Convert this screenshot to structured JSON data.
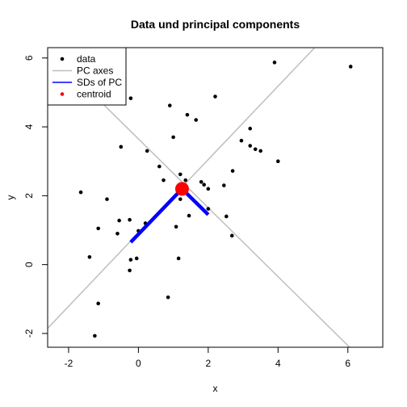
{
  "chart_data": {
    "type": "scatter",
    "title": "Data und principal components",
    "xlabel": "x",
    "ylabel": "y",
    "xlim": [
      -2.6,
      7.0
    ],
    "ylim": [
      -2.4,
      6.3
    ],
    "x_ticks": [
      -2,
      0,
      2,
      4,
      6
    ],
    "y_ticks": [
      -2,
      0,
      2,
      4,
      6
    ],
    "grid": false,
    "legend_position": "top-left",
    "legend": [
      {
        "label": "data",
        "kind": "point",
        "color": "#000000"
      },
      {
        "label": "PC axes",
        "kind": "line",
        "color": "#bebebe"
      },
      {
        "label": "SDs of PC",
        "kind": "line",
        "color": "#0000ff"
      },
      {
        "label": "centroid",
        "kind": "point",
        "color": "#ff0000"
      }
    ],
    "points": [
      {
        "x": 3.9,
        "y": 5.87
      },
      {
        "x": 6.08,
        "y": 5.75
      },
      {
        "x": -0.22,
        "y": 4.83
      },
      {
        "x": 2.2,
        "y": 4.88
      },
      {
        "x": 0.9,
        "y": 4.62
      },
      {
        "x": 1.4,
        "y": 4.35
      },
      {
        "x": 1.65,
        "y": 4.2
      },
      {
        "x": 3.2,
        "y": 3.95
      },
      {
        "x": 1.0,
        "y": 3.7
      },
      {
        "x": 2.95,
        "y": 3.6
      },
      {
        "x": 3.2,
        "y": 3.45
      },
      {
        "x": 3.35,
        "y": 3.35
      },
      {
        "x": 3.5,
        "y": 3.3
      },
      {
        "x": -0.5,
        "y": 3.42
      },
      {
        "x": 0.25,
        "y": 3.3
      },
      {
        "x": 4.0,
        "y": 3.0
      },
      {
        "x": 0.6,
        "y": 2.85
      },
      {
        "x": 2.7,
        "y": 2.72
      },
      {
        "x": 0.72,
        "y": 2.45
      },
      {
        "x": 1.2,
        "y": 2.62
      },
      {
        "x": 1.8,
        "y": 2.4
      },
      {
        "x": 1.88,
        "y": 2.32
      },
      {
        "x": 2.45,
        "y": 2.3
      },
      {
        "x": 1.35,
        "y": 2.45
      },
      {
        "x": 2.0,
        "y": 2.2
      },
      {
        "x": -1.65,
        "y": 2.1
      },
      {
        "x": 1.2,
        "y": 1.9
      },
      {
        "x": -0.9,
        "y": 1.9
      },
      {
        "x": 2.0,
        "y": 1.62
      },
      {
        "x": 1.45,
        "y": 1.42
      },
      {
        "x": 2.52,
        "y": 1.4
      },
      {
        "x": -0.55,
        "y": 1.28
      },
      {
        "x": -0.25,
        "y": 1.3
      },
      {
        "x": 0.2,
        "y": 1.2
      },
      {
        "x": 1.08,
        "y": 1.1
      },
      {
        "x": -1.15,
        "y": 1.05
      },
      {
        "x": 0.0,
        "y": 0.98
      },
      {
        "x": -0.6,
        "y": 0.9
      },
      {
        "x": 2.68,
        "y": 0.84
      },
      {
        "x": -1.4,
        "y": 0.22
      },
      {
        "x": -0.05,
        "y": 0.18
      },
      {
        "x": -0.22,
        "y": 0.14
      },
      {
        "x": 1.15,
        "y": 0.18
      },
      {
        "x": -0.25,
        "y": -0.17
      },
      {
        "x": 0.85,
        "y": -0.95
      },
      {
        "x": -1.15,
        "y": -1.13
      },
      {
        "x": -1.25,
        "y": -2.07
      }
    ],
    "centroid": {
      "x": 1.25,
      "y": 2.2
    },
    "pc_axes": [
      {
        "x1": -2.6,
        "y1": -1.85,
        "x2": 5.05,
        "y2": 6.3
      },
      {
        "x1": -1.2,
        "y1": 4.85,
        "x2": 6.05,
        "y2": -2.4
      }
    ],
    "pc_sds": [
      {
        "x1": 1.25,
        "y1": 2.2,
        "x2": -0.22,
        "y2": 0.65
      },
      {
        "x1": 1.25,
        "y1": 2.2,
        "x2": 2.0,
        "y2": 1.45
      }
    ]
  }
}
